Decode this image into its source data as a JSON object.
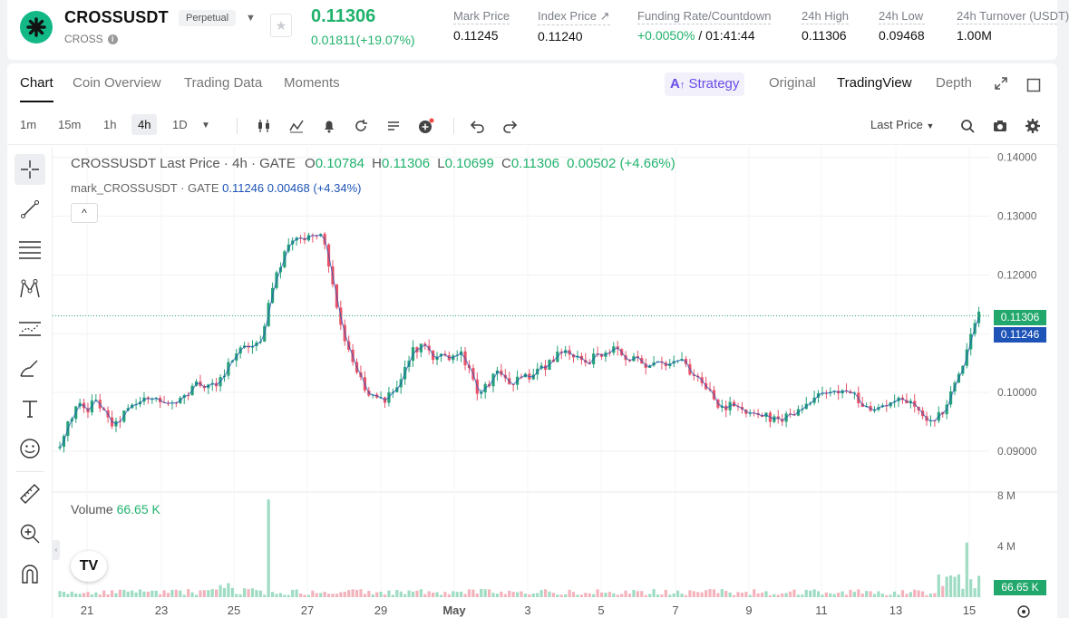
{
  "header": {
    "symbol": "CROSSUSDT",
    "badge": "Perpetual",
    "coin": "CROSS",
    "last_price": "0.11306",
    "change": "0.01811(+19.07%)",
    "stats": [
      {
        "label": "Mark Price",
        "value": "0.11245"
      },
      {
        "label": "Index Price ↗",
        "value": "0.11240"
      },
      {
        "label": "Funding Rate/Countdown",
        "value_pos": "+0.0050%",
        "value": " / 01:41:44"
      },
      {
        "label": "24h High",
        "value": "0.11306"
      },
      {
        "label": "24h Low",
        "value": "0.09468"
      },
      {
        "label": "24h Turnover (USDT)",
        "value": "1.00M"
      }
    ]
  },
  "tabs": [
    "Chart",
    "Coin Overview",
    "Trading Data",
    "Moments"
  ],
  "view_tabs": {
    "strategy": "Strategy",
    "original": "Original",
    "tradingview": "TradingView",
    "depth": "Depth"
  },
  "toolbar": {
    "timeframes": [
      "1m",
      "15m",
      "1h",
      "4h",
      "1D"
    ],
    "active_timeframe": "4h",
    "price_type": "Last Price"
  },
  "legend": {
    "title": "CROSSUSDT Last Price · 4h · GATE",
    "o_label": "O",
    "o": "0.10784",
    "h_label": "H",
    "h": "0.11306",
    "l_label": "L",
    "l": "0.10699",
    "c_label": "C",
    "c": "0.11306",
    "chg": "0.00502 (+4.66%)",
    "mark_title": "mark_CROSSUSDT · GATE",
    "mark_value": "0.11246 0.00468 (+4.34%)"
  },
  "volume": {
    "label": "Volume",
    "value": "66.65 K"
  },
  "tags": {
    "last": "0.11306",
    "mark": "0.11246",
    "volume": "66.65 K"
  },
  "colors": {
    "up": "#26a17b",
    "down": "#e8536a",
    "accent": "#6a4ce8",
    "mark_line": "#1e54b7"
  },
  "chart_data": {
    "type": "candlestick",
    "price_axis": {
      "ticks": [
        "0.14000",
        "0.13000",
        "0.12000",
        "0.11000",
        "0.10000",
        "0.09000"
      ],
      "range": [
        0.0832,
        0.1418
      ]
    },
    "volume_axis": {
      "ticks": [
        "8 M",
        "4 M"
      ],
      "range": [
        0,
        8
      ]
    },
    "x_ticks": [
      "21",
      "23",
      "25",
      "27",
      "29",
      "May",
      "3",
      "5",
      "7",
      "9",
      "11",
      "13",
      "15"
    ],
    "close_path": [
      0.0905,
      0.095,
      0.098,
      0.0965,
      0.0992,
      0.096,
      0.094,
      0.0965,
      0.0975,
      0.0985,
      0.0995,
      0.0982,
      0.0988,
      0.0983,
      0.0995,
      0.1012,
      0.1008,
      0.1015,
      0.103,
      0.106,
      0.1072,
      0.108,
      0.1075,
      0.116,
      0.121,
      0.125,
      0.127,
      0.1255,
      0.1275,
      0.126,
      0.118,
      0.111,
      0.105,
      0.102,
      0.0995,
      0.0985,
      0.099,
      0.1005,
      0.105,
      0.1075,
      0.108,
      0.106,
      0.1065,
      0.1055,
      0.1068,
      0.104,
      0.1,
      0.101,
      0.1035,
      0.102,
      0.1018,
      0.1025,
      0.103,
      0.104,
      0.1055,
      0.1072,
      0.106,
      0.1055,
      0.105,
      0.1065,
      0.107,
      0.1072,
      0.106,
      0.1055,
      0.105,
      0.1045,
      0.1048,
      0.105,
      0.1058,
      0.104,
      0.1022,
      0.1005,
      0.0988,
      0.097,
      0.098,
      0.0975,
      0.0965,
      0.0962,
      0.0958,
      0.0952,
      0.096,
      0.0972,
      0.0985,
      0.0995,
      0.099,
      0.0998,
      0.1,
      0.0995,
      0.0985,
      0.0965,
      0.0978,
      0.0982,
      0.0988,
      0.099,
      0.0975,
      0.096,
      0.0955,
      0.0962,
      0.1,
      0.104,
      0.109,
      0.1131
    ]
  }
}
